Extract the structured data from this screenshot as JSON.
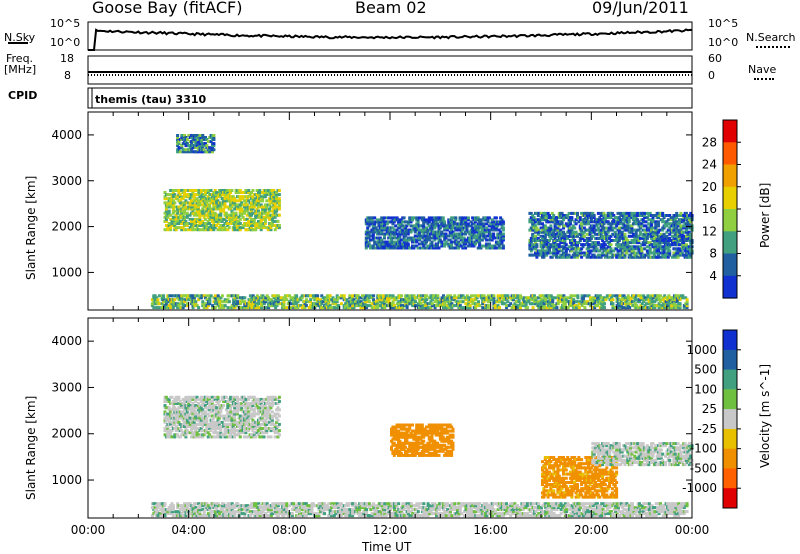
{
  "header": {
    "station": "Goose Bay (fitACF)",
    "beam": "Beam 02",
    "date": "09/Jun/2011"
  },
  "noise_panel": {
    "left_label": "N.Sky",
    "left_top_tick": "10^5",
    "left_bottom_tick": "10^0",
    "right_label": "N.Search",
    "right_top_tick": "10^5",
    "right_bottom_tick": "10^0"
  },
  "freq_panel": {
    "left_label_line1": "Freq.",
    "left_label_line2": "[MHz]",
    "left_top_tick": "18",
    "left_bottom_tick": "8",
    "right_label": "Nave",
    "right_top_tick": "60",
    "right_bottom_tick": "0"
  },
  "cpid_panel": {
    "label": "CPID",
    "program": "themis (tau) 3310"
  },
  "axes": {
    "ylabel": "Slant Range [km]",
    "yticks": [
      "4000",
      "3000",
      "2000",
      "1000"
    ],
    "xlabel": "Time UT",
    "xticks": [
      "00:00",
      "04:00",
      "08:00",
      "12:00",
      "16:00",
      "20:00",
      "00:00"
    ]
  },
  "power_colorbar": {
    "label": "Power [dB]",
    "ticks": [
      "28",
      "24",
      "20",
      "16",
      "12",
      "8",
      "4"
    ],
    "colors": [
      "#e00000",
      "#ff5a00",
      "#f0a000",
      "#e8d000",
      "#90d040",
      "#40a080",
      "#2060a0",
      "#1030d0"
    ]
  },
  "velocity_colorbar": {
    "label": "Velocity [m s^-1]",
    "ticks": [
      "1000",
      "500",
      "100",
      "25",
      "-25",
      "-100",
      "-500",
      "-1000"
    ],
    "colors": [
      "#1030d0",
      "#2060a0",
      "#40a080",
      "#70c040",
      "#c8c8c8",
      "#e8c000",
      "#f09000",
      "#ff6000",
      "#e00000"
    ]
  },
  "chart_data": [
    {
      "type": "heatmap",
      "title": "Power",
      "xlabel": "Time UT",
      "ylabel": "Slant Range [km]",
      "xlim": [
        0,
        24
      ],
      "ylim": [
        180,
        4500
      ],
      "colorbar_label": "Power [dB]",
      "colorbar_range": [
        0,
        32
      ],
      "regions": [
        {
          "t0": 3.0,
          "t1": 7.6,
          "r0": 1900,
          "r1": 2800,
          "value_dB": 16
        },
        {
          "t0": 3.5,
          "t1": 5.0,
          "r0": 3600,
          "r1": 4000,
          "value_dB": 10
        },
        {
          "t0": 2.5,
          "t1": 23.8,
          "r0": 200,
          "r1": 500,
          "value_dB": 14
        },
        {
          "t0": 17.5,
          "t1": 24.0,
          "r0": 1300,
          "r1": 2300,
          "value_dB": 9
        },
        {
          "t0": 11.0,
          "t1": 16.5,
          "r0": 1500,
          "r1": 2200,
          "value_dB": 8
        }
      ]
    },
    {
      "type": "heatmap",
      "title": "Velocity",
      "xlabel": "Time UT",
      "ylabel": "Slant Range [km]",
      "xlim": [
        0,
        24
      ],
      "ylim": [
        180,
        4500
      ],
      "colorbar_label": "Velocity [m s^-1]",
      "colorbar_range": [
        -1000,
        1000
      ],
      "regions": [
        {
          "t0": 3.0,
          "t1": 7.6,
          "r0": 1900,
          "r1": 2800,
          "value_ms": 0
        },
        {
          "t0": 12.0,
          "t1": 14.5,
          "r0": 1500,
          "r1": 2200,
          "value_ms": -300
        },
        {
          "t0": 18.0,
          "t1": 21.0,
          "r0": 600,
          "r1": 1500,
          "value_ms": -200
        },
        {
          "t0": 2.5,
          "t1": 23.8,
          "r0": 200,
          "r1": 500,
          "value_ms": 0
        },
        {
          "t0": 20.0,
          "t1": 24.0,
          "r0": 1300,
          "r1": 1800,
          "value_ms": 0
        }
      ]
    }
  ]
}
